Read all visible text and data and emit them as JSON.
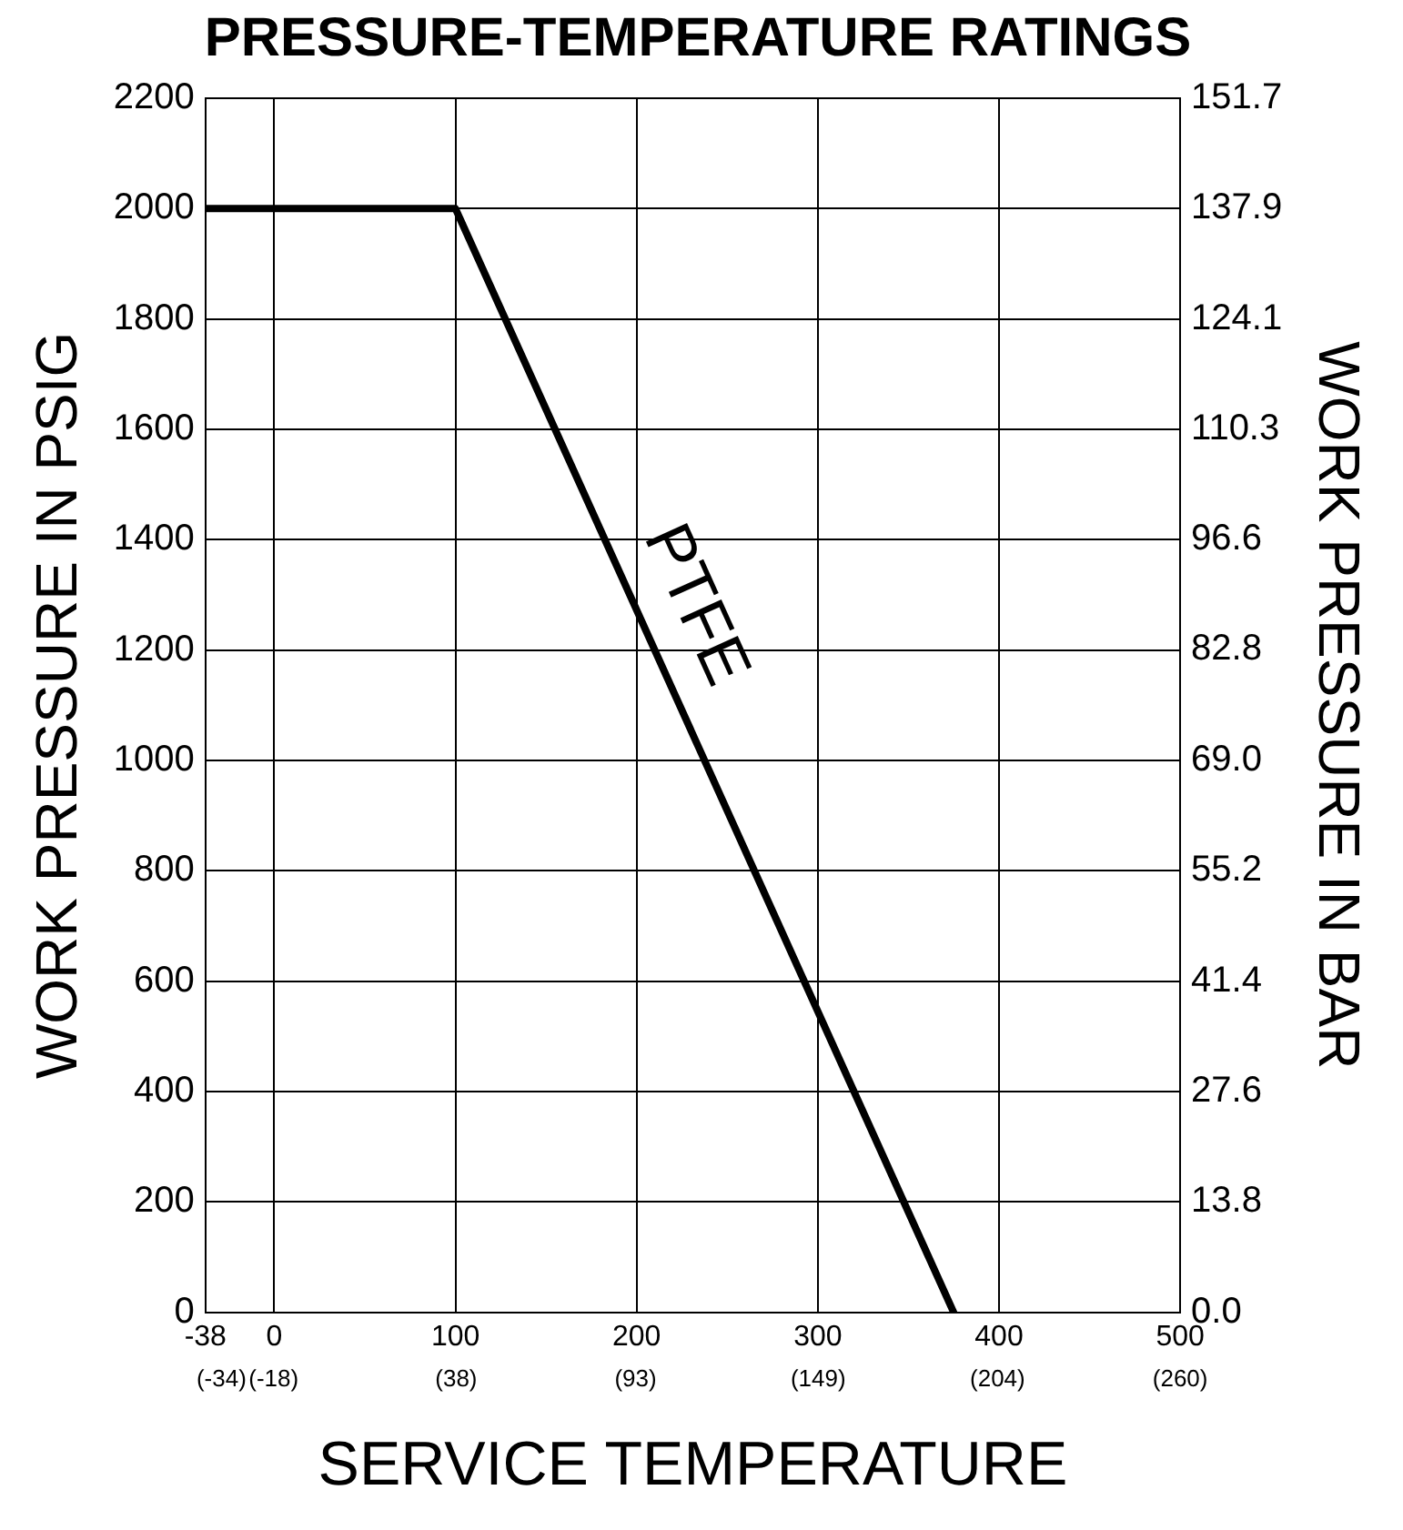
{
  "chart_data": {
    "type": "line",
    "title": "PRESSURE-TEMPERATURE RATINGS",
    "xlabel": "SERVICE TEMPERATURE",
    "ylabel": "WORK PRESSURE IN PSIG",
    "y2label": "WORK PRESSURE IN BAR",
    "xlim": [
      -38,
      500
    ],
    "xticks": [
      -38,
      0,
      100,
      200,
      300,
      400,
      500
    ],
    "x2lim": [
      -38.9,
      260
    ],
    "x2ticks": [
      {
        "value": -34,
        "label": "(-34)"
      },
      {
        "value": -18,
        "label": "(-18)"
      },
      {
        "value": 38,
        "label": "(38)"
      },
      {
        "value": 93,
        "label": "(93)"
      },
      {
        "value": 149,
        "label": "(149)"
      },
      {
        "value": 204,
        "label": "(204)"
      },
      {
        "value": 260,
        "label": "(260)"
      }
    ],
    "ylim": [
      0,
      2200
    ],
    "yticks": [
      0,
      200,
      400,
      600,
      800,
      1000,
      1200,
      1400,
      1600,
      1800,
      2000,
      2200
    ],
    "y2lim": [
      0,
      151.7
    ],
    "y2ticks": [
      {
        "value": 0,
        "label": "0.0"
      },
      13.8,
      27.6,
      41.4,
      55.2,
      {
        "value": 69,
        "label": "69.0"
      },
      82.8,
      96.6,
      110.3,
      124.1,
      137.9,
      151.7
    ],
    "series": [
      {
        "name": "PTFE",
        "color": "#000000",
        "x": [
          -38,
          100,
          375
        ],
        "values": [
          2000,
          2000,
          0
        ]
      }
    ],
    "grid": true,
    "legend": false,
    "marker": "none",
    "line_style": "solid"
  }
}
